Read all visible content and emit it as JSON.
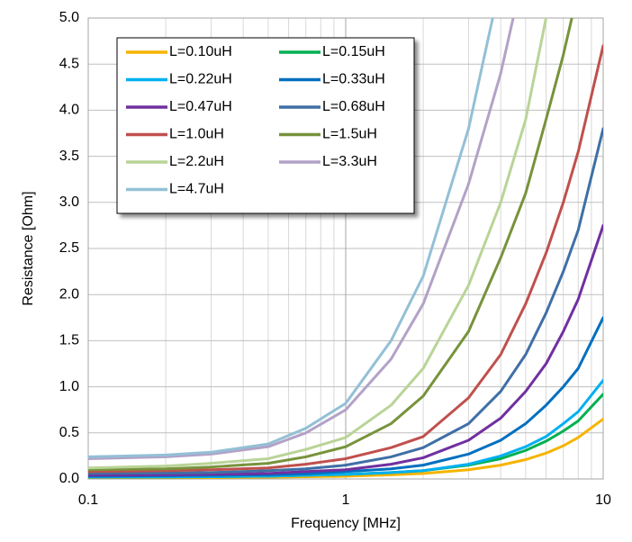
{
  "chart_data": {
    "type": "line",
    "x_label": "Frequency [MHz]",
    "y_label": "Resistance [Ohm]",
    "x_log": true,
    "xlim": [
      0.1,
      10
    ],
    "xticks": [
      0.1,
      1,
      10
    ],
    "x_minor_grid": true,
    "ylim": [
      0,
      5
    ],
    "yticks": [
      {
        "value": 0,
        "label": "0.0"
      },
      0.5,
      {
        "value": 1,
        "label": "1.0"
      },
      1.5,
      {
        "value": 2,
        "label": "2.0"
      },
      2.5,
      {
        "value": 3,
        "label": "3.0"
      },
      3.5,
      {
        "value": 4,
        "label": "4.0"
      },
      4.5,
      {
        "value": 5,
        "label": "5.0"
      }
    ],
    "grid": true,
    "legend": "upper left",
    "x": [
      0.1,
      0.2,
      0.3,
      0.5,
      0.7,
      1,
      1.5,
      2,
      3,
      4,
      5,
      6,
      7,
      8,
      10
    ],
    "series": [
      {
        "name": "L=0.10uH",
        "color": "#f5b400",
        "values": [
          0.01,
          0.012,
          0.015,
          0.02,
          0.025,
          0.03,
          0.045,
          0.06,
          0.1,
          0.15,
          0.21,
          0.28,
          0.36,
          0.45,
          0.65
        ]
      },
      {
        "name": "L=0.15uH",
        "color": "#00b050",
        "values": [
          0.02,
          0.022,
          0.025,
          0.03,
          0.04,
          0.05,
          0.07,
          0.09,
          0.15,
          0.22,
          0.31,
          0.41,
          0.52,
          0.63,
          0.92
        ]
      },
      {
        "name": "L=0.22uH",
        "color": "#00b0f0",
        "values": [
          0.02,
          0.022,
          0.025,
          0.03,
          0.04,
          0.05,
          0.07,
          0.09,
          0.16,
          0.25,
          0.35,
          0.46,
          0.6,
          0.73,
          1.07
        ]
      },
      {
        "name": "L=0.33uH",
        "color": "#0070c0",
        "values": [
          0.03,
          0.035,
          0.04,
          0.045,
          0.055,
          0.08,
          0.11,
          0.15,
          0.27,
          0.42,
          0.6,
          0.8,
          1.0,
          1.2,
          1.75
        ]
      },
      {
        "name": "L=0.47uH",
        "color": "#7030a0",
        "values": [
          0.04,
          0.045,
          0.05,
          0.06,
          0.08,
          0.1,
          0.16,
          0.23,
          0.42,
          0.66,
          0.95,
          1.25,
          1.6,
          1.95,
          2.75
        ]
      },
      {
        "name": "L=0.68uH",
        "color": "#3f6fa6",
        "values": [
          0.06,
          0.065,
          0.07,
          0.09,
          0.11,
          0.15,
          0.24,
          0.34,
          0.6,
          0.95,
          1.35,
          1.8,
          2.25,
          2.7,
          3.8
        ]
      },
      {
        "name": "L=1.0uH",
        "color": "#c0504d",
        "values": [
          0.08,
          0.09,
          0.1,
          0.12,
          0.16,
          0.22,
          0.34,
          0.46,
          0.88,
          1.35,
          1.9,
          2.45,
          3.0,
          3.55,
          4.7
        ]
      },
      {
        "name": "L=1.5uH",
        "color": "#77933c",
        "values": [
          0.1,
          0.11,
          0.13,
          0.17,
          0.24,
          0.35,
          0.6,
          0.9,
          1.6,
          2.4,
          3.1,
          3.9,
          4.6,
          5.3,
          null
        ]
      },
      {
        "name": "L=2.2uH",
        "color": "#b9d497",
        "values": [
          0.12,
          0.14,
          0.17,
          0.22,
          0.32,
          0.45,
          0.8,
          1.2,
          2.1,
          3.0,
          3.9,
          5.0,
          6.0,
          null,
          null
        ]
      },
      {
        "name": "L=3.3uH",
        "color": "#b3a2c7",
        "values": [
          0.22,
          0.24,
          0.27,
          0.35,
          0.5,
          0.75,
          1.3,
          1.9,
          3.2,
          4.4,
          5.6,
          null,
          null,
          null,
          null
        ]
      },
      {
        "name": "L=4.7uH",
        "color": "#93c0d6",
        "values": [
          0.24,
          0.26,
          0.29,
          0.38,
          0.55,
          0.82,
          1.5,
          2.2,
          3.8,
          5.4,
          null,
          null,
          null,
          null,
          null
        ]
      }
    ]
  }
}
